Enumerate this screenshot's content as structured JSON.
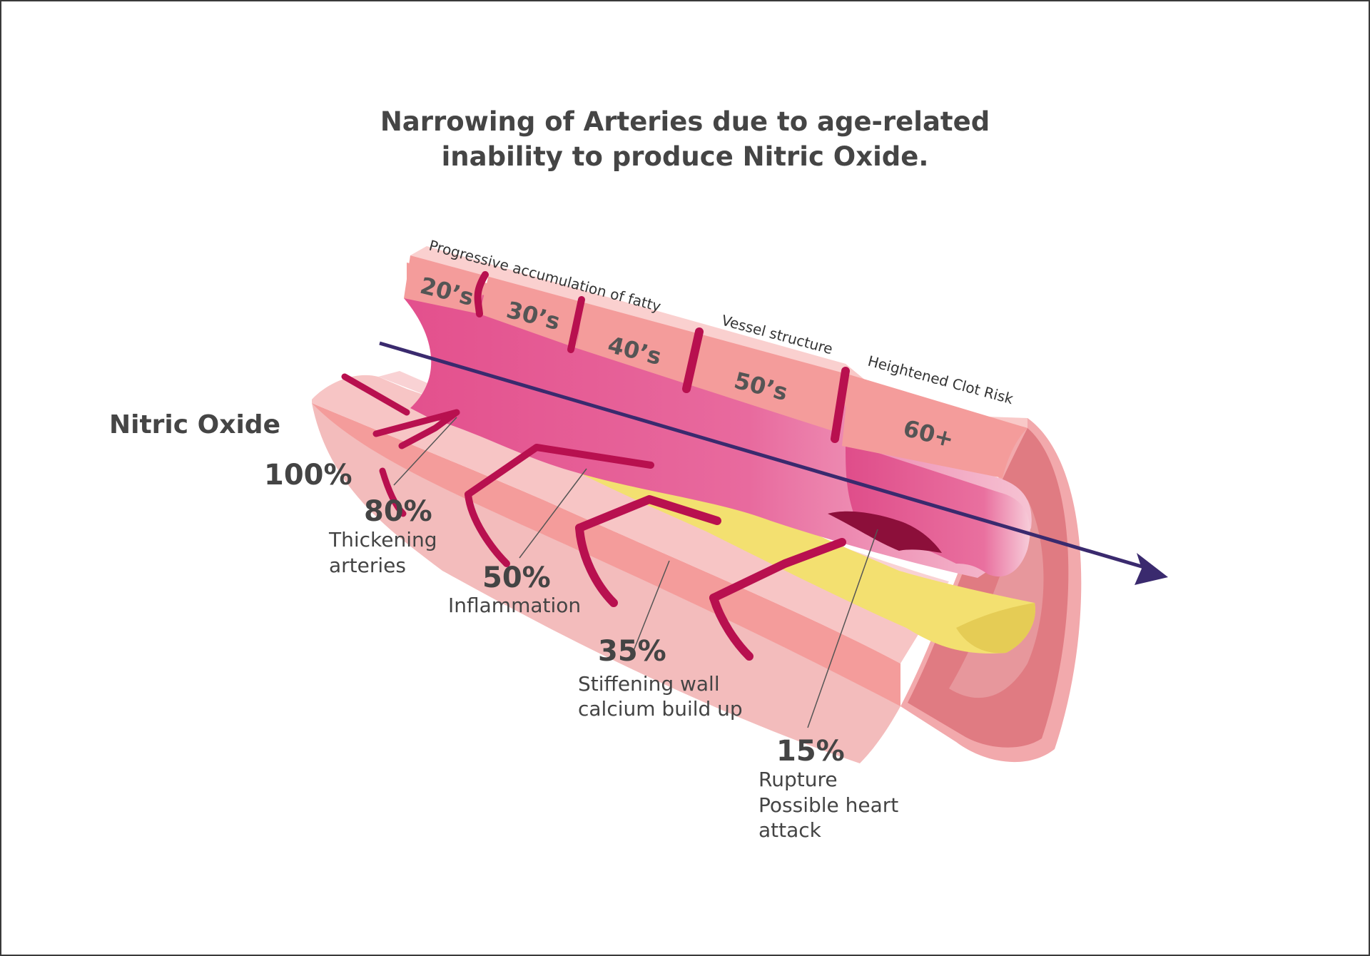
{
  "title": {
    "line1": "Narrowing of Arteries due to age-related",
    "line2": "inability to produce Nitric Oxide."
  },
  "nitric_oxide_label": "Nitric Oxide",
  "stages": [
    {
      "percent": "100%",
      "desc": []
    },
    {
      "percent": "80%",
      "desc": [
        "Thickening",
        "arteries"
      ]
    },
    {
      "percent": "50%",
      "desc": [
        "Inflammation"
      ]
    },
    {
      "percent": "35%",
      "desc": [
        "Stiffening wall",
        "calcium build up"
      ]
    },
    {
      "percent": "15%",
      "desc": [
        "Rupture",
        "Possible heart",
        "attack"
      ]
    }
  ],
  "decades": [
    "20’s",
    "30’s",
    "40’s",
    "50’s",
    "60+"
  ],
  "band_labels": {
    "fatty": "Progressive accumulation of fatty",
    "vessel": "Vessel structure",
    "clot": "Heightened Clot Risk"
  },
  "colors": {
    "outer_wall": "#f4a09e",
    "outer_wall_light": "#f7c1c1",
    "lumen": "#e3508d",
    "separator": "#b8104f",
    "plaque": "#f3e070",
    "cross_section": "#e07b82",
    "arrow": "#3a2a6e",
    "text": "#444444"
  }
}
